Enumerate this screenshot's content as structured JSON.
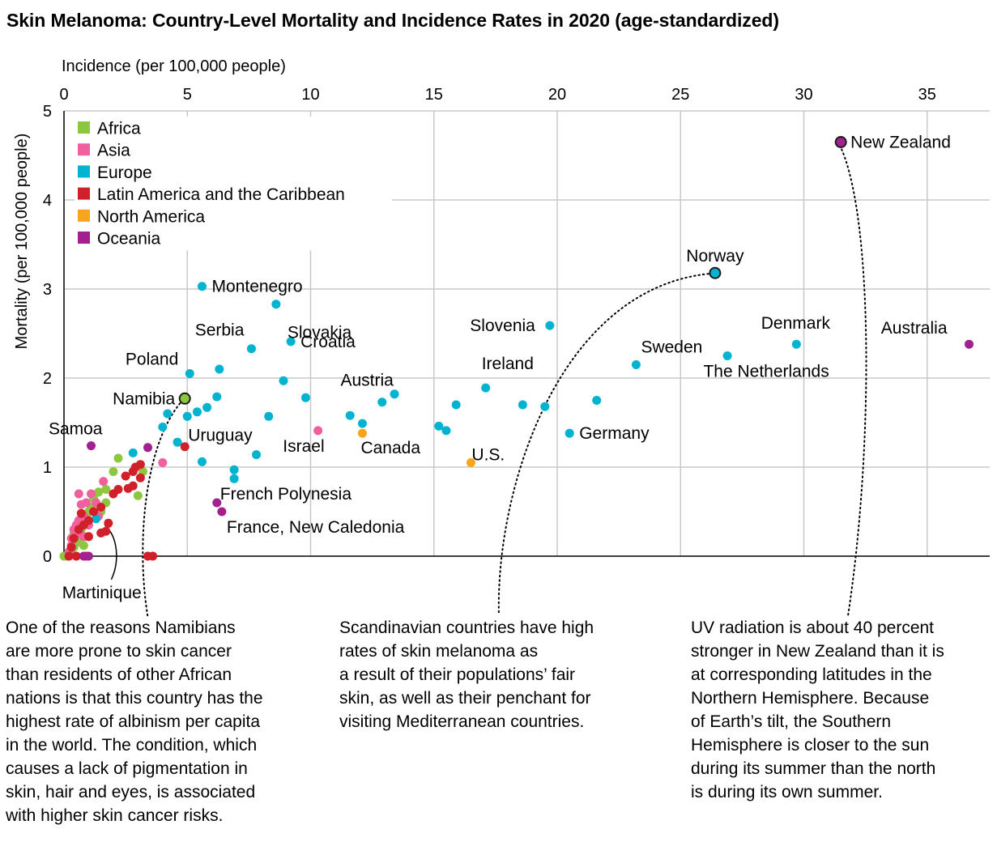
{
  "title": "Skin Melanoma: Country-Level Mortality and Incidence Rates in 2020 (age-standardized)",
  "chart_data": {
    "type": "scatter",
    "title": "Skin Melanoma: Country-Level Mortality and Incidence Rates in 2020 (age-standardized)",
    "xlabel": "Incidence (per 100,000 people)",
    "ylabel": "Mortality (per 100,000 people)",
    "xlim": [
      0,
      37
    ],
    "ylim": [
      0,
      5
    ],
    "xticks": [
      0,
      5,
      10,
      15,
      20,
      25,
      30,
      35
    ],
    "yticks": [
      0,
      1,
      2,
      3,
      4,
      5
    ],
    "grid": true,
    "legend_position": "top-left",
    "legend": [
      {
        "name": "Africa",
        "color": "#8dc63f"
      },
      {
        "name": "Asia",
        "color": "#f0609e"
      },
      {
        "name": "Europe",
        "color": "#00b4d0"
      },
      {
        "name": "Latin America and the Caribbean",
        "color": "#d0202a"
      },
      {
        "name": "North America",
        "color": "#f9a51b"
      },
      {
        "name": "Oceania",
        "color": "#a3218e"
      }
    ],
    "series": [
      {
        "name": "Africa",
        "color": "#8dc63f",
        "points": [
          [
            0.0,
            0.0
          ],
          [
            0.1,
            0.0
          ],
          [
            0.2,
            0.0
          ],
          [
            0.3,
            0.05
          ],
          [
            0.4,
            0.1
          ],
          [
            0.5,
            0.15
          ],
          [
            0.6,
            0.2
          ],
          [
            0.4,
            0.25
          ],
          [
            0.7,
            0.3
          ],
          [
            0.8,
            0.35
          ],
          [
            0.6,
            0.4
          ],
          [
            0.9,
            0.45
          ],
          [
            1.0,
            0.5
          ],
          [
            1.1,
            0.55
          ],
          [
            1.3,
            0.6
          ],
          [
            1.5,
            0.5
          ],
          [
            1.7,
            0.6
          ],
          [
            1.2,
            0.65
          ],
          [
            1.4,
            0.72
          ],
          [
            1.7,
            0.75
          ],
          [
            2.0,
            0.95
          ],
          [
            2.2,
            1.1
          ],
          [
            3.2,
            0.95
          ],
          [
            3.0,
            0.68
          ],
          [
            0.5,
            0.3
          ],
          [
            0.8,
            0.12
          ]
        ]
      },
      {
        "name": "Asia",
        "color": "#f0609e",
        "points": [
          [
            0.2,
            0.05
          ],
          [
            0.3,
            0.2
          ],
          [
            0.4,
            0.3
          ],
          [
            0.5,
            0.35
          ],
          [
            0.5,
            0.25
          ],
          [
            0.3,
            0.12
          ],
          [
            0.6,
            0.4
          ],
          [
            0.8,
            0.45
          ],
          [
            0.7,
            0.58
          ],
          [
            0.9,
            0.6
          ],
          [
            0.6,
            0.7
          ],
          [
            1.1,
            0.7
          ],
          [
            1.4,
            0.45
          ],
          [
            1.3,
            0.6
          ],
          [
            1.6,
            0.84
          ],
          [
            0.8,
            0.22
          ],
          [
            1.0,
            0.35
          ],
          [
            4.0,
            1.05
          ],
          [
            10.3,
            1.41
          ]
        ]
      },
      {
        "name": "Europe",
        "color": "#00b4d0",
        "points": [
          [
            1.3,
            0.42
          ],
          [
            2.8,
            1.16
          ],
          [
            4.0,
            1.45
          ],
          [
            4.2,
            1.6
          ],
          [
            4.6,
            1.28
          ],
          [
            5.0,
            1.57
          ],
          [
            5.1,
            2.05
          ],
          [
            5.6,
            3.03
          ],
          [
            5.4,
            1.62
          ],
          [
            5.8,
            1.67
          ],
          [
            6.2,
            1.79
          ],
          [
            6.3,
            2.1
          ],
          [
            5.6,
            1.06
          ],
          [
            6.9,
            0.97
          ],
          [
            6.9,
            0.87
          ],
          [
            7.6,
            2.33
          ],
          [
            7.8,
            1.14
          ],
          [
            8.3,
            1.57
          ],
          [
            8.6,
            2.83
          ],
          [
            8.9,
            1.97
          ],
          [
            9.2,
            2.41
          ],
          [
            9.8,
            1.78
          ],
          [
            11.6,
            1.58
          ],
          [
            12.1,
            1.49
          ],
          [
            12.9,
            1.73
          ],
          [
            13.4,
            1.82
          ],
          [
            15.2,
            1.46
          ],
          [
            15.5,
            1.41
          ],
          [
            15.9,
            1.7
          ],
          [
            17.1,
            1.89
          ],
          [
            18.6,
            1.7
          ],
          [
            19.5,
            1.68
          ],
          [
            19.7,
            2.59
          ],
          [
            20.5,
            1.38
          ],
          [
            21.6,
            1.75
          ],
          [
            23.2,
            2.15
          ],
          [
            26.4,
            3.18
          ],
          [
            26.9,
            2.25
          ],
          [
            29.7,
            2.38
          ]
        ]
      },
      {
        "name": "Latin America and the Caribbean",
        "color": "#d0202a",
        "points": [
          [
            0.2,
            0.0
          ],
          [
            0.5,
            0.0
          ],
          [
            0.3,
            0.1
          ],
          [
            0.4,
            0.2
          ],
          [
            0.6,
            0.3
          ],
          [
            0.8,
            0.35
          ],
          [
            1.0,
            0.4
          ],
          [
            0.7,
            0.48
          ],
          [
            1.2,
            0.5
          ],
          [
            1.5,
            0.55
          ],
          [
            1.8,
            0.37
          ],
          [
            1.5,
            0.26
          ],
          [
            1.7,
            0.28
          ],
          [
            2.0,
            0.7
          ],
          [
            2.2,
            0.75
          ],
          [
            2.5,
            0.9
          ],
          [
            2.6,
            0.76
          ],
          [
            2.8,
            0.79
          ],
          [
            2.8,
            0.95
          ],
          [
            2.9,
            1.0
          ],
          [
            3.1,
            0.88
          ],
          [
            3.1,
            1.03
          ],
          [
            3.4,
            0.0
          ],
          [
            3.6,
            0.0
          ],
          [
            4.9,
            1.23
          ],
          [
            1.0,
            0.22
          ],
          [
            0.9,
            0.0
          ]
        ]
      },
      {
        "name": "North America",
        "color": "#f9a51b",
        "points": [
          [
            12.1,
            1.38
          ],
          [
            16.5,
            1.05
          ]
        ]
      },
      {
        "name": "Oceania",
        "color": "#a3218e",
        "points": [
          [
            0.8,
            0.0
          ],
          [
            1.0,
            0.0
          ],
          [
            1.1,
            1.24
          ],
          [
            3.4,
            1.22
          ],
          [
            6.2,
            0.6
          ],
          [
            6.4,
            0.5
          ],
          [
            31.5,
            4.65
          ],
          [
            36.7,
            2.38
          ]
        ]
      }
    ],
    "highlighted": [
      {
        "name": "Namibia",
        "x": 4.9,
        "y": 1.77,
        "color": "#8dc63f"
      },
      {
        "name": "Norway",
        "x": 26.4,
        "y": 3.18,
        "color": "#00b4d0"
      },
      {
        "name": "New Zealand",
        "x": 31.5,
        "y": 4.65,
        "color": "#a3218e"
      }
    ],
    "labels": [
      {
        "text": "New Zealand",
        "x": 31.5,
        "y": 4.65,
        "anchor": "right"
      },
      {
        "text": "Norway",
        "x": 26.4,
        "y": 3.18,
        "anchor": "above"
      },
      {
        "text": "Montenegro",
        "x": 5.6,
        "y": 3.03,
        "anchor": "right"
      },
      {
        "text": "Slovakia",
        "x": 8.6,
        "y": 2.83,
        "anchor": "below-right"
      },
      {
        "text": "Serbia",
        "x": 7.6,
        "y": 2.33,
        "anchor": "above-left"
      },
      {
        "text": "Croatia",
        "x": 9.2,
        "y": 2.41,
        "anchor": "right"
      },
      {
        "text": "Slovenia",
        "x": 19.7,
        "y": 2.59,
        "anchor": "left"
      },
      {
        "text": "Denmark",
        "x": 29.7,
        "y": 2.38,
        "anchor": "above"
      },
      {
        "text": "Australia",
        "x": 36.7,
        "y": 2.38,
        "anchor": "above-left"
      },
      {
        "text": "Sweden",
        "x": 23.2,
        "y": 2.15,
        "anchor": "above-right"
      },
      {
        "text": "The Netherlands",
        "x": 26.9,
        "y": 2.25,
        "anchor": "below"
      },
      {
        "text": "Poland",
        "x": 5.1,
        "y": 2.05,
        "anchor": "above-left"
      },
      {
        "text": "Austria",
        "x": 12.9,
        "y": 1.73,
        "anchor": "above-left"
      },
      {
        "text": "Ireland",
        "x": 17.1,
        "y": 1.89,
        "anchor": "above-right"
      },
      {
        "text": "Namibia",
        "x": 4.9,
        "y": 1.77,
        "anchor": "left"
      },
      {
        "text": "Germany",
        "x": 20.5,
        "y": 1.38,
        "anchor": "right"
      },
      {
        "text": "Samoa",
        "x": 1.1,
        "y": 1.24,
        "anchor": "above-left"
      },
      {
        "text": "Uruguay",
        "x": 4.9,
        "y": 1.23,
        "anchor": "above-right"
      },
      {
        "text": "Israel",
        "x": 10.3,
        "y": 1.41,
        "anchor": "below-left"
      },
      {
        "text": "Canada",
        "x": 12.1,
        "y": 1.38,
        "anchor": "below-right"
      },
      {
        "text": "U.S.",
        "x": 16.5,
        "y": 1.05,
        "anchor": "above-right"
      },
      {
        "text": "French Polynesia",
        "x": 6.2,
        "y": 0.6,
        "anchor": "above-right"
      },
      {
        "text": "France, New Caledonia",
        "x": 6.4,
        "y": 0.5,
        "anchor": "below-right"
      },
      {
        "text": "Martinique",
        "x": 1.6,
        "y": 0.38,
        "anchor": "callout-below"
      }
    ],
    "annotations": [
      {
        "id": "namibia",
        "text": "One of the reasons Namibians\nare more prone to skin cancer\nthan residents of other African\nnations is that this country has the\nhighest rate of albinism per capita\nin the world. The condition, which\ncauses a lack of pigmentation in\nskin, hair and eyes, is associated\nwith higher skin cancer risks."
      },
      {
        "id": "scandinavia",
        "text": "Scandinavian countries have high\nrates of skin melanoma as\na result of their populations’ fair\nskin, as well as their penchant for\nvisiting Mediterranean countries."
      },
      {
        "id": "new-zealand",
        "text": "UV radiation is about 40 percent\nstronger in New Zealand than it is\nat corresponding latitudes in the\nNorthern Hemisphere. Because\nof Earth’s tilt, the Southern\nHemisphere is closer to the sun\nduring its summer than the north\nis during its own summer."
      }
    ]
  }
}
